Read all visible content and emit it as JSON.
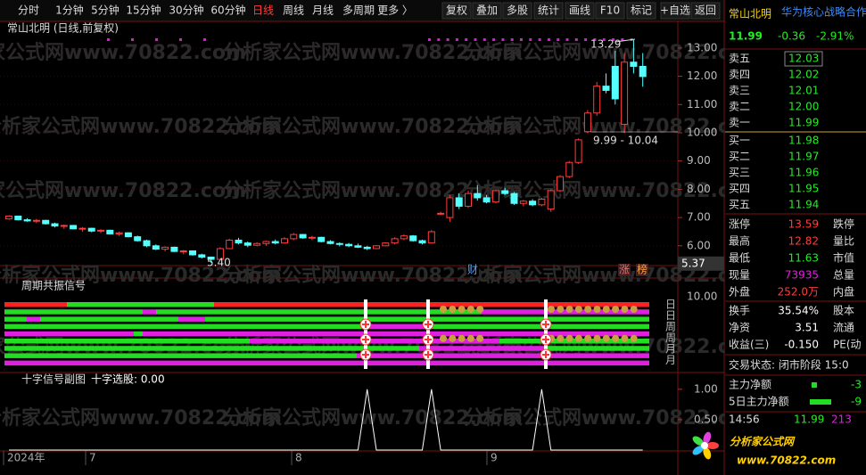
{
  "toolbar": {
    "periods": [
      "分时",
      "1分钟",
      "5分钟",
      "15分钟",
      "30分钟",
      "60分钟",
      "日线",
      "周线",
      "月线",
      "多周期",
      "更多 〉"
    ],
    "active": "日线",
    "buttons": [
      "复权",
      "叠加",
      "多股",
      "统计",
      "画线",
      "F10",
      "标记",
      "+自选",
      "返回"
    ]
  },
  "watermark": "分析家公式网www.70822.com",
  "chart_data": {
    "type": "candlestick",
    "title": "常山北明 (日线,前复权)",
    "up_color": "#ff3c3c",
    "down_color": "#54ffff",
    "ylim": [
      5.3,
      13.5
    ],
    "yticks": [
      {
        "value": 13,
        "label": "13.00"
      },
      {
        "value": 12,
        "label": "12.00"
      },
      {
        "value": 11,
        "label": "11.00"
      },
      {
        "value": 10,
        "label": "10.00"
      },
      {
        "value": 9,
        "label": "9.00"
      },
      {
        "value": 8,
        "label": "8.00"
      },
      {
        "value": 7,
        "label": "7.00"
      },
      {
        "value": 6,
        "label": "6.00"
      }
    ],
    "cursor_price": 5.37,
    "annotations": [
      "13.29",
      "9.99 - 10.04",
      "5.40"
    ],
    "markers": [
      "财",
      "涨",
      "榜"
    ],
    "ohlc": [
      [
        6.95,
        7.08,
        6.92,
        7.05
      ],
      [
        7.05,
        7.06,
        6.9,
        6.92
      ],
      [
        6.92,
        6.98,
        6.85,
        6.88
      ],
      [
        6.88,
        6.95,
        6.8,
        6.9
      ],
      [
        6.9,
        6.92,
        6.75,
        6.78
      ],
      [
        6.78,
        6.82,
        6.65,
        6.7
      ],
      [
        6.7,
        6.75,
        6.6,
        6.72
      ],
      [
        6.72,
        6.74,
        6.58,
        6.6
      ],
      [
        6.6,
        6.66,
        6.5,
        6.62
      ],
      [
        6.62,
        6.64,
        6.48,
        6.52
      ],
      [
        6.52,
        6.58,
        6.45,
        6.55
      ],
      [
        6.55,
        6.57,
        6.4,
        6.42
      ],
      [
        6.42,
        6.5,
        6.35,
        6.46
      ],
      [
        6.46,
        6.48,
        6.3,
        6.32
      ],
      [
        6.32,
        6.36,
        6.15,
        6.18
      ],
      [
        6.18,
        6.22,
        5.95,
        6.0
      ],
      [
        6.0,
        6.05,
        5.85,
        5.88
      ],
      [
        5.88,
        5.98,
        5.8,
        5.95
      ],
      [
        5.95,
        5.97,
        5.78,
        5.8
      ],
      [
        5.8,
        5.85,
        5.7,
        5.82
      ],
      [
        5.82,
        5.84,
        5.65,
        5.68
      ],
      [
        5.68,
        5.72,
        5.55,
        5.6
      ],
      [
        5.6,
        5.62,
        5.4,
        5.52
      ],
      [
        5.52,
        5.95,
        5.5,
        5.9
      ],
      [
        5.9,
        6.25,
        5.88,
        6.2
      ],
      [
        6.2,
        6.28,
        6.05,
        6.1
      ],
      [
        6.1,
        6.15,
        5.95,
        6.02
      ],
      [
        6.02,
        6.12,
        5.98,
        6.08
      ],
      [
        6.08,
        6.18,
        6.0,
        6.15
      ],
      [
        6.15,
        6.22,
        6.05,
        6.1
      ],
      [
        6.1,
        6.3,
        6.08,
        6.25
      ],
      [
        6.25,
        6.45,
        6.2,
        6.4
      ],
      [
        6.4,
        6.42,
        6.25,
        6.28
      ],
      [
        6.28,
        6.35,
        6.2,
        6.3
      ],
      [
        6.3,
        6.32,
        6.12,
        6.15
      ],
      [
        6.15,
        6.2,
        6.05,
        6.08
      ],
      [
        6.08,
        6.12,
        5.98,
        6.05
      ],
      [
        6.05,
        6.1,
        5.95,
        6.0
      ],
      [
        6.0,
        6.08,
        5.92,
        5.95
      ],
      [
        5.95,
        6.0,
        5.85,
        5.9
      ],
      [
        5.9,
        6.02,
        5.88,
        6.0
      ],
      [
        6.0,
        6.12,
        5.98,
        6.1
      ],
      [
        6.1,
        6.3,
        6.05,
        6.25
      ],
      [
        6.25,
        6.4,
        6.2,
        6.35
      ],
      [
        6.35,
        6.38,
        6.15,
        6.18
      ],
      [
        6.18,
        6.22,
        6.05,
        6.1
      ],
      [
        6.1,
        6.55,
        6.08,
        6.5
      ],
      [
        7.15,
        7.2,
        7.1,
        7.15
      ],
      [
        7.0,
        7.8,
        6.85,
        7.7
      ],
      [
        7.7,
        7.85,
        7.3,
        7.4
      ],
      [
        7.4,
        7.95,
        7.35,
        7.85
      ],
      [
        7.85,
        8.15,
        7.6,
        7.7
      ],
      [
        7.7,
        7.8,
        7.5,
        7.55
      ],
      [
        7.55,
        8.0,
        7.5,
        7.95
      ],
      [
        7.95,
        8.05,
        7.8,
        7.85
      ],
      [
        7.85,
        7.9,
        7.45,
        7.5
      ],
      [
        7.5,
        7.62,
        7.4,
        7.58
      ],
      [
        7.58,
        7.65,
        7.4,
        7.45
      ],
      [
        7.45,
        7.7,
        7.4,
        7.65
      ],
      [
        7.3,
        8.0,
        7.2,
        7.95
      ],
      [
        7.95,
        8.5,
        7.9,
        8.45
      ],
      [
        8.45,
        9.0,
        8.4,
        8.95
      ],
      [
        8.95,
        9.8,
        8.9,
        9.75
      ],
      [
        10.04,
        10.8,
        9.99,
        10.7
      ],
      [
        10.7,
        11.8,
        10.6,
        11.65
      ],
      [
        11.65,
        12.1,
        11.4,
        11.5
      ],
      [
        12.35,
        12.9,
        11.0,
        11.2
      ],
      [
        10.3,
        12.82,
        9.99,
        12.5
      ],
      [
        12.5,
        13.29,
        12.1,
        12.35
      ],
      [
        12.35,
        12.82,
        11.63,
        11.99
      ]
    ],
    "dates": [
      "2024年",
      "7",
      "8",
      "9"
    ]
  },
  "signal_panel": {
    "title": "周期共振信号",
    "tick": "10.00",
    "side_labels": [
      "日",
      "日",
      "周",
      "周",
      "月",
      "月"
    ]
  },
  "cross_panel": {
    "title": "十字信号副图",
    "value_text": "十字选股: 0.00",
    "color": "#ffffff",
    "ylim": [
      0,
      1.1
    ],
    "yticks": [
      {
        "value": 1,
        "label": "1.00"
      },
      {
        "value": 0.5,
        "label": "0.50"
      }
    ],
    "values": [
      0,
      0,
      0,
      0,
      0,
      0,
      0,
      0,
      0,
      0,
      0,
      0,
      0,
      0,
      0,
      0,
      0,
      0,
      0,
      0,
      0,
      0,
      0,
      0,
      0,
      0,
      0,
      0,
      0,
      0,
      0,
      0,
      0,
      0,
      0,
      0,
      0,
      0,
      0,
      1,
      0,
      0,
      0,
      0,
      0,
      0,
      1,
      0,
      0,
      0,
      0,
      0,
      0,
      0,
      0,
      0,
      0,
      0,
      1,
      0,
      0,
      0,
      0,
      0,
      0,
      0,
      0,
      0,
      0,
      0
    ]
  },
  "quote": {
    "name": "常山北明",
    "news": "华为核心战略合作伙",
    "price": "11.99",
    "change": "-0.36",
    "change_pct": "-2.91%",
    "asks": [
      [
        "卖五",
        "12.03"
      ],
      [
        "卖四",
        "12.02"
      ],
      [
        "卖三",
        "12.01"
      ],
      [
        "卖二",
        "12.00"
      ],
      [
        "卖一",
        "11.99"
      ]
    ],
    "bids": [
      [
        "买一",
        "11.98"
      ],
      [
        "买二",
        "11.97"
      ],
      [
        "买三",
        "11.96"
      ],
      [
        "买四",
        "11.95"
      ],
      [
        "买五",
        "11.94"
      ]
    ],
    "stats": [
      [
        "涨停",
        "13.59",
        "跌停"
      ],
      [
        "最高",
        "12.82",
        "量比"
      ],
      [
        "最低",
        "11.63",
        "市值"
      ],
      [
        "现量",
        "73935",
        "总量"
      ],
      [
        "外盘",
        "252.0万",
        "内盘"
      ]
    ],
    "stats2": [
      [
        "换手",
        "35.54%",
        "股本"
      ],
      [
        "净资",
        "3.51",
        "流通"
      ],
      [
        "收益(三)",
        "-0.150",
        "PE(动"
      ]
    ],
    "status": "交易状态: 闭市阶段 15:0",
    "flows": [
      [
        "主力净额",
        "-3"
      ],
      [
        "5日主力净额",
        "-9"
      ]
    ],
    "tick": [
      "14:56",
      "11.99",
      "213"
    ]
  },
  "logo": {
    "name": "分析家公式网",
    "url": "www.70822.com"
  }
}
